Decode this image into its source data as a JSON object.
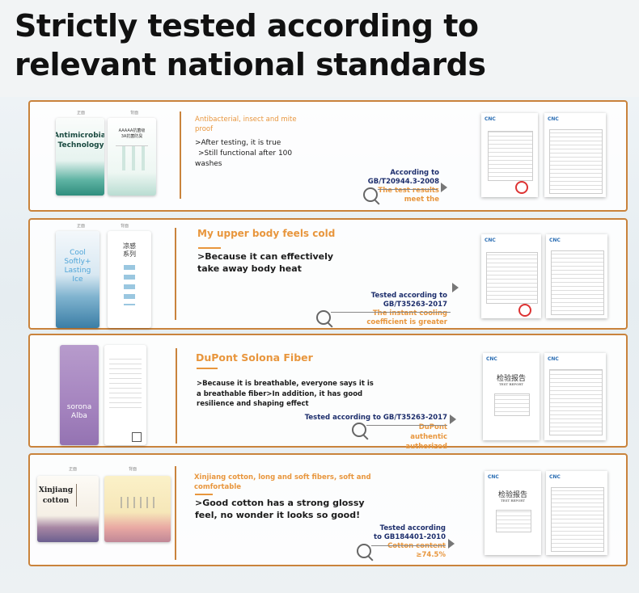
{
  "title": "Strictly tested according to relevant national standards",
  "colors": {
    "accent": "#c9833c",
    "orange": "#e8963d",
    "navy": "#1e2f6d"
  },
  "cards": [
    {
      "tag_labels": [
        "正面",
        "背面"
      ],
      "tag_text": "Antimicrobial\nTechnology",
      "tag_back_title": "AAAAA抗菌级\n3A抗菌防臭",
      "heading": "Antibacterial, insect and mite proof",
      "bullets": [
        ">After testing, it is true",
        ">Still functional after 100 washes"
      ],
      "standard": "According to GB/T20944.3-2008",
      "result": "The test results meet the"
    },
    {
      "tag_labels": [
        "正面",
        "背面"
      ],
      "tag_text": "Cool Softly+\nLasting\nIce",
      "tag_back_title": "凉感\n系列",
      "heading": "My upper body feels cold",
      "bullets": [
        ">Because it can effectively take away body heat"
      ],
      "standard": "Tested according to GB/T35263-2017",
      "result": "The instant cooling coefficient is greater than"
    },
    {
      "tag_labels": [],
      "tag_text": "sorona\nAlba",
      "tag_back_title": "",
      "heading": "DuPont Solona Fiber",
      "bullets": [
        ">Because it is breathable, everyone says it is a breathable fiber>In addition, it has good resilience and shaping effect"
      ],
      "standard": "Tested according to GB/T35263-2017",
      "result": "DuPont authentic authorized"
    },
    {
      "tag_labels": [
        "正面",
        "背面"
      ],
      "tag_text": "Xinjiang\ncotton",
      "tag_back_title": "",
      "heading": "Xinjiang cotton, long and soft fibers, soft and comfortable",
      "bullets": [
        ">Good cotton has a strong glossy feel, no wonder it looks so good!"
      ],
      "standard": "Tested according to GB184401-2010",
      "result": "Cotton content ≥74.5%"
    }
  ],
  "report": {
    "logo": "CNC",
    "cn_title": "检验报告",
    "en_title": "TEST REPORT"
  }
}
